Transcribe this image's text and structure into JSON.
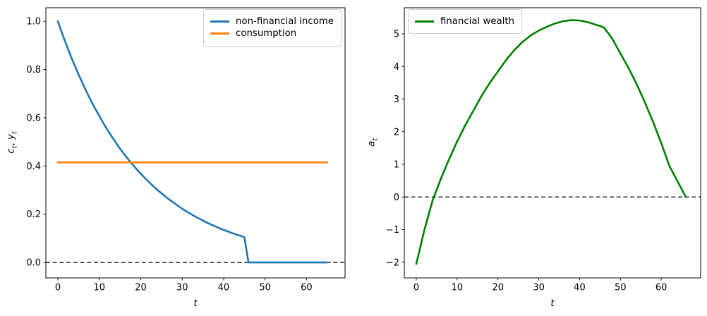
{
  "figure": {
    "background": "#ffffff",
    "axis_color": "#000000",
    "zero_line_color": "#000000"
  },
  "chart_data": [
    {
      "id": "income-consumption",
      "type": "line",
      "title": "",
      "xlabel": "t",
      "ylabel": "c_t, y_t",
      "xlim": [
        -2.9,
        69.3
      ],
      "ylim": [
        -0.064,
        1.056
      ],
      "grid": false,
      "xticks": {
        "values": [
          0,
          10,
          20,
          30,
          40,
          50,
          60
        ],
        "labels": [
          "0",
          "10",
          "20",
          "30",
          "40",
          "50",
          "60"
        ]
      },
      "yticks": {
        "values": [
          0,
          0.2,
          0.4,
          0.6,
          0.8,
          1.0
        ],
        "labels": [
          "0.0",
          "0.2",
          "0.4",
          "0.6",
          "0.8",
          "1.0"
        ]
      },
      "axhline": {
        "y": 0,
        "style": "dashed",
        "color": "#000000"
      },
      "legend": {
        "position": "upper-right",
        "entries": [
          {
            "label": "non-financial income",
            "color": "#1f77b4"
          },
          {
            "label": "consumption",
            "color": "#ff7f0e"
          }
        ]
      },
      "series": [
        {
          "name": "non-financial income",
          "color": "#1f77b4",
          "x": [
            0,
            1,
            2,
            3,
            4,
            5,
            6,
            7,
            8,
            9,
            10,
            11,
            12,
            13,
            14,
            15,
            16,
            17,
            18,
            19,
            20,
            21,
            22,
            23,
            24,
            25,
            26,
            27,
            28,
            29,
            30,
            31,
            32,
            33,
            34,
            35,
            36,
            37,
            38,
            39,
            40,
            41,
            42,
            43,
            44,
            45,
            46,
            47,
            48,
            49,
            50,
            51,
            52,
            53,
            54,
            55,
            56,
            57,
            58,
            59,
            60,
            61,
            62,
            63,
            64,
            65
          ],
          "y": [
            1.0,
            0.951,
            0.905,
            0.861,
            0.819,
            0.779,
            0.741,
            0.705,
            0.67,
            0.638,
            0.607,
            0.577,
            0.549,
            0.522,
            0.497,
            0.472,
            0.449,
            0.427,
            0.407,
            0.387,
            0.368,
            0.35,
            0.333,
            0.317,
            0.301,
            0.287,
            0.273,
            0.259,
            0.247,
            0.235,
            0.223,
            0.212,
            0.202,
            0.192,
            0.183,
            0.174,
            0.165,
            0.157,
            0.15,
            0.142,
            0.135,
            0.129,
            0.122,
            0.116,
            0.111,
            0.105,
            0,
            0,
            0,
            0,
            0,
            0,
            0,
            0,
            0,
            0,
            0,
            0,
            0,
            0,
            0,
            0,
            0,
            0,
            0,
            0
          ]
        },
        {
          "name": "consumption",
          "color": "#ff7f0e",
          "x": [
            0,
            65
          ],
          "y": [
            0.415,
            0.415
          ]
        }
      ]
    },
    {
      "id": "financial-wealth",
      "type": "line",
      "title": "",
      "xlabel": "t",
      "ylabel": "a_t",
      "xlim": [
        -2.94,
        69.65
      ],
      "ylim": [
        -2.48,
        5.8
      ],
      "grid": false,
      "xticks": {
        "values": [
          0,
          10,
          20,
          30,
          40,
          50,
          60
        ],
        "labels": [
          "0",
          "10",
          "20",
          "30",
          "40",
          "50",
          "60"
        ]
      },
      "yticks": {
        "values": [
          -2,
          -1,
          0,
          1,
          2,
          3,
          4,
          5
        ],
        "labels": [
          "−2",
          "−1",
          "0",
          "1",
          "2",
          "3",
          "4",
          "5"
        ]
      },
      "axhline": {
        "y": 0,
        "style": "dashed",
        "color": "#000000"
      },
      "legend": {
        "position": "upper-left",
        "entries": [
          {
            "label": "financial wealth",
            "color": "#008000"
          }
        ]
      },
      "series": [
        {
          "name": "financial wealth",
          "color": "#008000",
          "x": [
            0,
            2,
            4,
            6,
            8,
            10,
            12,
            14,
            16,
            18,
            20,
            22,
            24,
            26,
            28,
            30,
            32,
            34,
            36,
            38,
            40,
            42,
            44,
            45,
            46,
            48,
            50,
            52,
            54,
            56,
            58,
            60,
            62,
            64,
            66
          ],
          "y": [
            -2.05,
            -1.0,
            -0.1,
            0.55,
            1.15,
            1.7,
            2.2,
            2.65,
            3.1,
            3.5,
            3.85,
            4.2,
            4.5,
            4.75,
            4.95,
            5.1,
            5.22,
            5.32,
            5.39,
            5.42,
            5.41,
            5.36,
            5.28,
            5.24,
            5.19,
            4.85,
            4.4,
            3.95,
            3.45,
            2.9,
            2.3,
            1.65,
            0.95,
            0.48,
            0.0
          ]
        }
      ]
    }
  ]
}
